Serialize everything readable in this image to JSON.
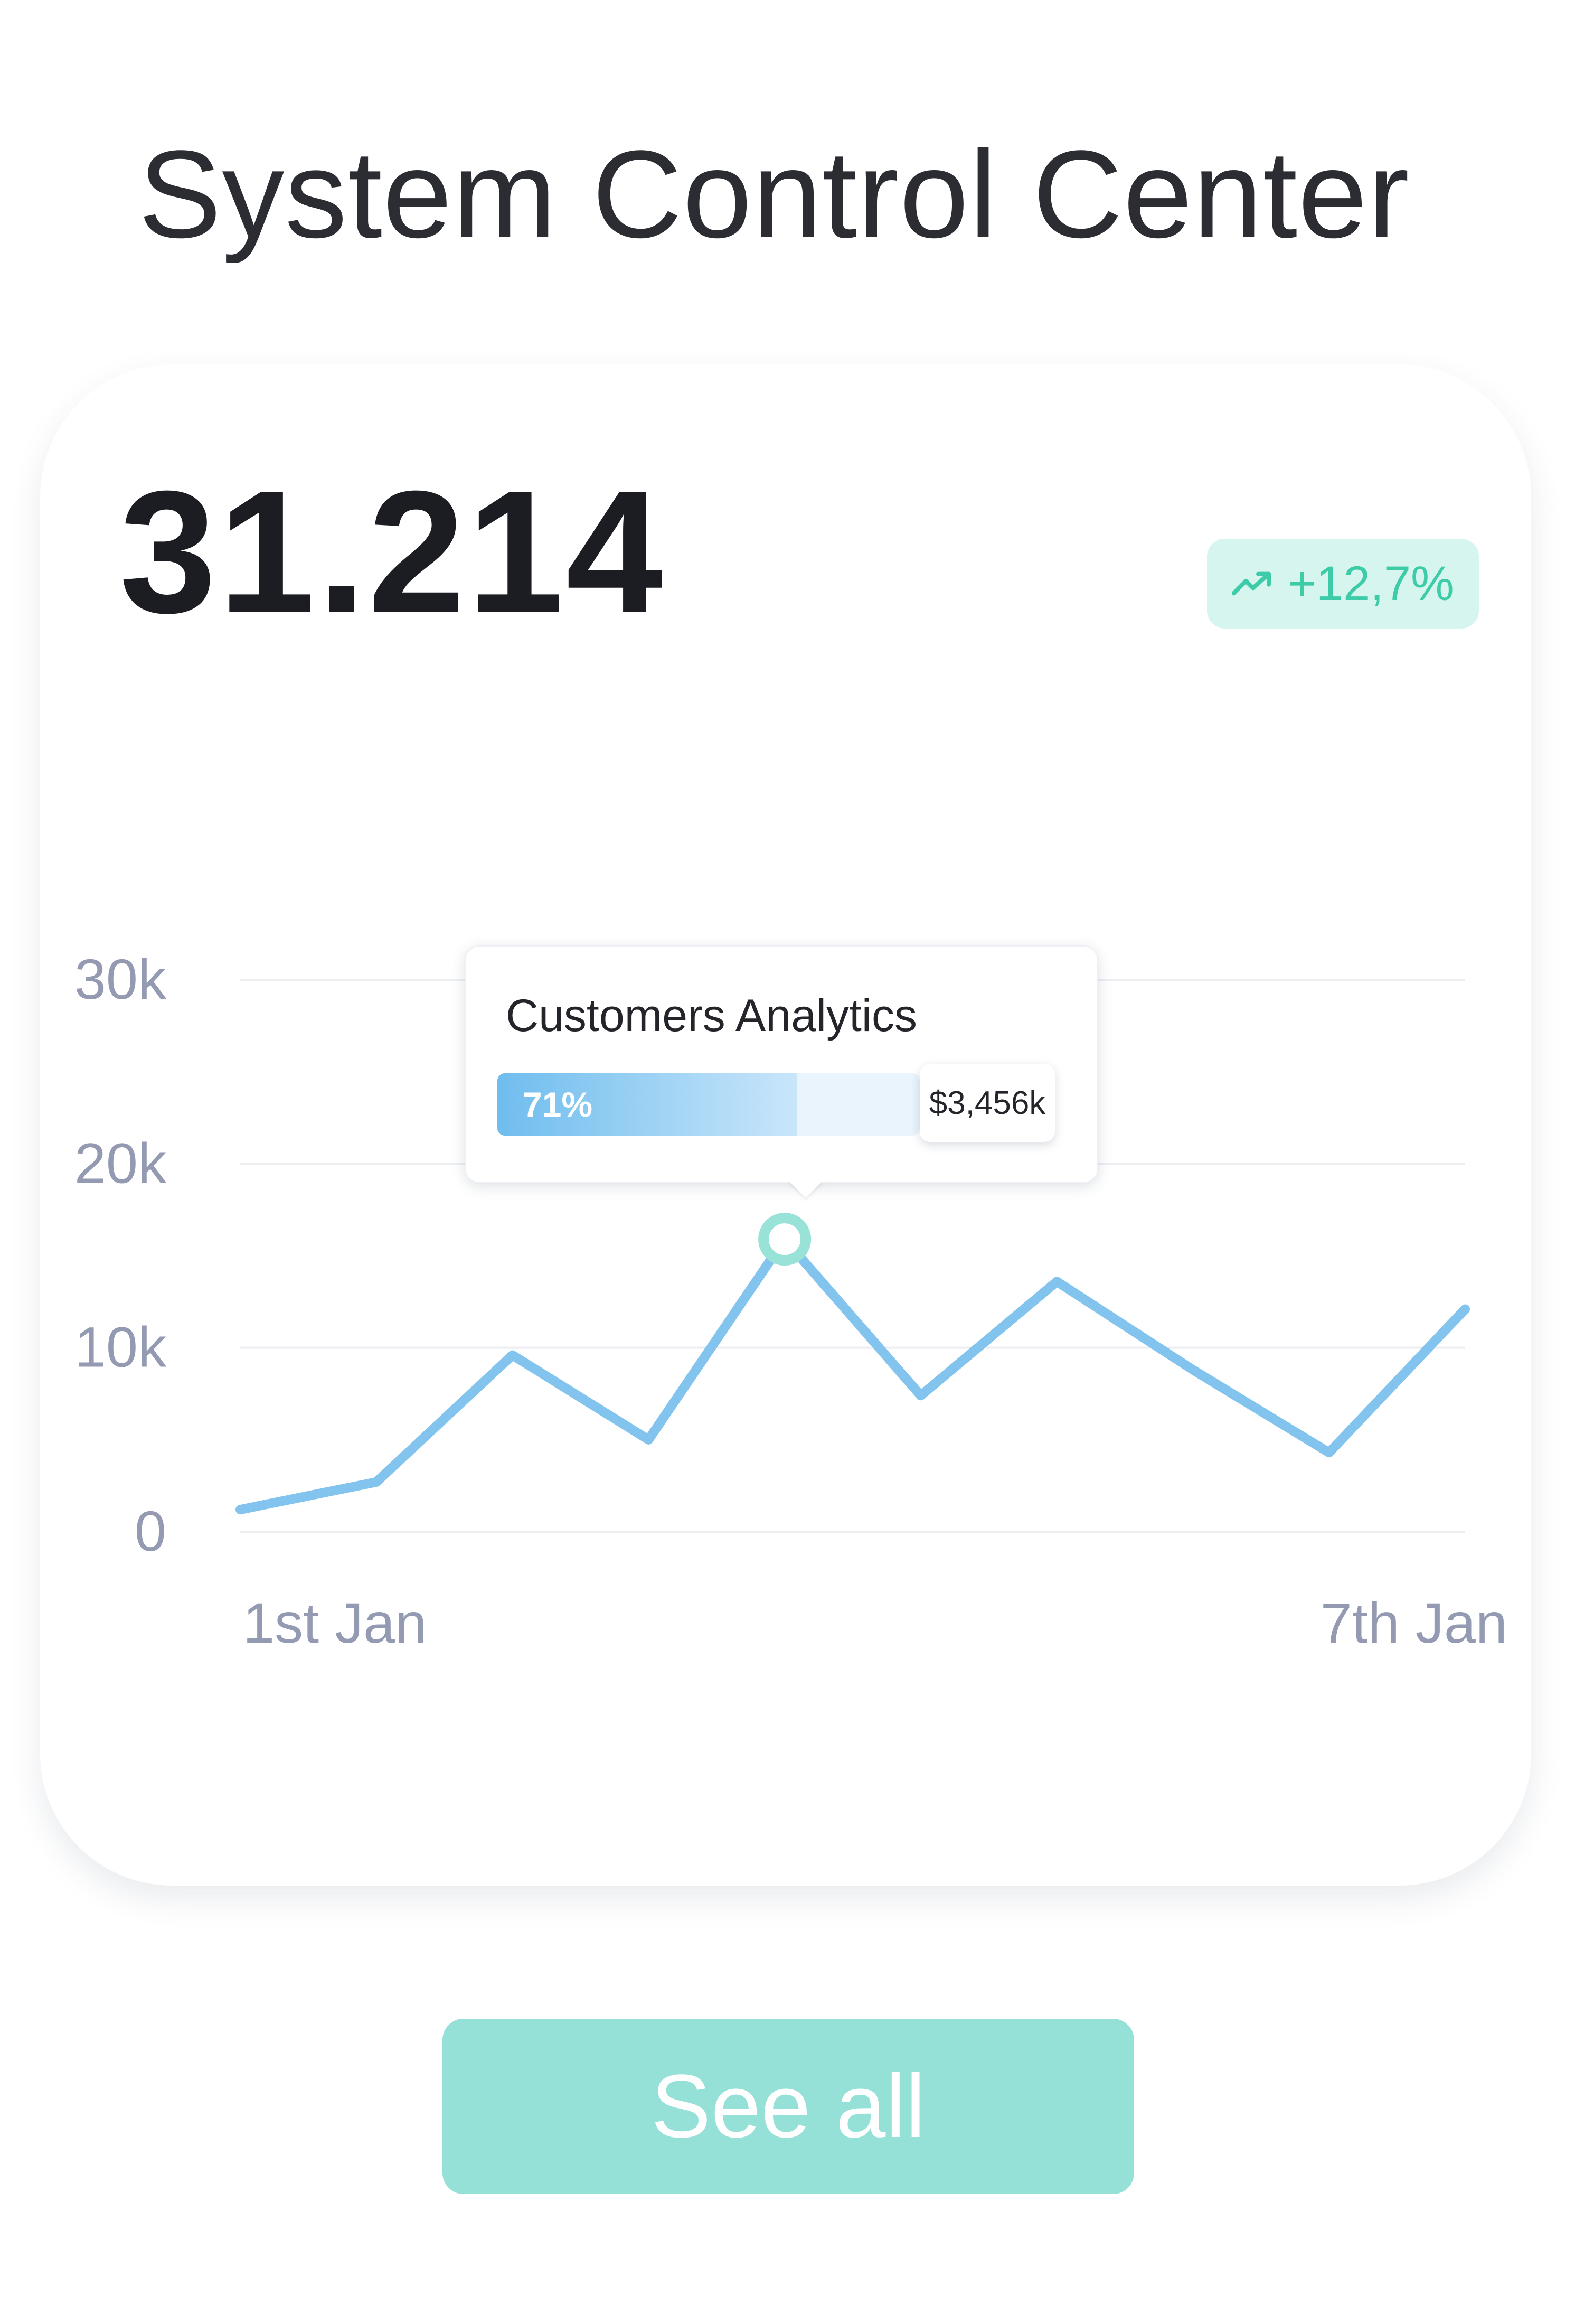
{
  "header": {
    "title": "System Control Center"
  },
  "card": {
    "value": "31.214",
    "trend": {
      "icon": "trending-up-icon",
      "text": "+12,7%",
      "color": "#3ecba8",
      "background": "#d5f5ee"
    }
  },
  "tooltip": {
    "title": "Customers Analytics",
    "percent_label": "71%",
    "percent": 71,
    "amount": "$3,456k"
  },
  "chart_data": {
    "type": "line",
    "x": [
      1,
      2,
      3,
      4,
      5,
      6,
      7,
      8,
      9,
      10
    ],
    "values": [
      1200,
      2700,
      9600,
      5000,
      15900,
      7400,
      13600,
      8800,
      4300,
      12100
    ],
    "highlight_index": 4,
    "y_ticks": [
      "30k",
      "20k",
      "10k",
      "0"
    ],
    "y_tick_values": [
      30000,
      20000,
      10000,
      0
    ],
    "x_tick_labels": [
      "1st Jan",
      "7th Jan"
    ],
    "ylim": [
      0,
      30000
    ],
    "grid": true,
    "line_color": "#82c4ee",
    "highlight_color": "#98e2d8"
  },
  "footer": {
    "button_label": "See all"
  }
}
